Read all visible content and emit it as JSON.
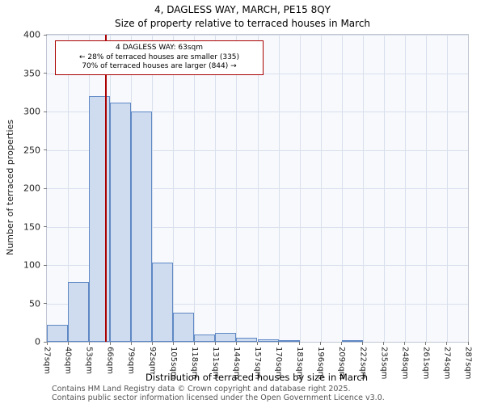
{
  "page": {
    "footer_line1": "Contains HM Land Registry data © Crown copyright and database right 2025.",
    "footer_line2": "Contains public sector information licensed under the Open Government Licence v3.0."
  },
  "chart_data": {
    "type": "bar",
    "title": "4, DAGLESS WAY, MARCH, PE15 8QY",
    "subtitle": "Size of property relative to terraced houses in March",
    "xlabel": "Distribution of terraced houses by size in March",
    "ylabel": "Number of terraced properties",
    "ylim": [
      0,
      400
    ],
    "yticks": [
      0,
      50,
      100,
      150,
      200,
      250,
      300,
      350,
      400
    ],
    "bin_edges": [
      27,
      40,
      53,
      66,
      79,
      92,
      105,
      118,
      131,
      144,
      157,
      170,
      183,
      196,
      209,
      222,
      235,
      248,
      261,
      274,
      287
    ],
    "tick_labels": [
      "27sqm",
      "40sqm",
      "53sqm",
      "66sqm",
      "79sqm",
      "92sqm",
      "105sqm",
      "118sqm",
      "131sqm",
      "144sqm",
      "157sqm",
      "170sqm",
      "183sqm",
      "196sqm",
      "209sqm",
      "222sqm",
      "235sqm",
      "248sqm",
      "261sqm",
      "274sqm",
      "287sqm"
    ],
    "values": [
      22,
      78,
      320,
      312,
      300,
      103,
      38,
      10,
      12,
      5,
      3,
      2,
      0,
      0,
      2,
      0,
      0,
      0,
      0,
      0
    ],
    "marker": {
      "x_sqm": 63
    },
    "annotation": {
      "line1": "4 DAGLESS WAY: 63sqm",
      "line2": "← 28% of terraced houses are smaller (335)",
      "line3": "70% of terraced houses are larger (844) →"
    },
    "legend": "none",
    "grid": "on",
    "colors": {
      "bar_fill": "#cfdcf0",
      "bar_border": "#5e88c4",
      "marker_line": "#aa0000",
      "grid_line": "#d9e0ec",
      "plot_bg": "#f7f9fd",
      "spine": "#c0c6d2"
    }
  }
}
